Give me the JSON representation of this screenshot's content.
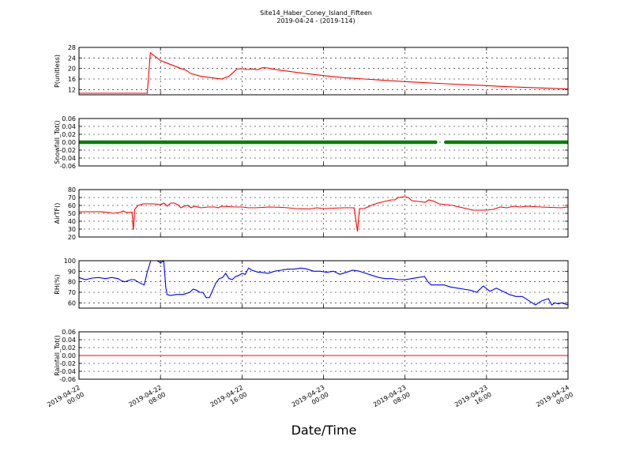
{
  "chart_data": {
    "type": "line",
    "title": "Site14_Haber_Coney_Island_Fifteen",
    "subtitle": "2019-04-24 - (2019-114)",
    "xlabel": "Date/Time",
    "x_ticks": [
      [
        "2019-04-22",
        "00:00"
      ],
      [
        "2019-04-22",
        "08:00"
      ],
      [
        "2019-04-22",
        "16:00"
      ],
      [
        "2019-04-23",
        "00:00"
      ],
      [
        "2019-04-23",
        "08:00"
      ],
      [
        "2019-04-23",
        "16:00"
      ],
      [
        "2019-04-24",
        "00:00"
      ]
    ],
    "x_range_hours": [
      0,
      48
    ],
    "panels": [
      {
        "ylabel": "P(unitless)",
        "ylim": [
          10,
          28
        ],
        "yticks": [
          "12",
          "16",
          "20",
          "24",
          "28"
        ],
        "ytick_values": [
          12,
          16,
          20,
          24,
          28
        ],
        "color": "#ff0000",
        "style": "line",
        "points": [
          [
            0,
            10.6
          ],
          [
            6.7,
            10.6
          ],
          [
            7.0,
            26.0
          ],
          [
            7.5,
            24.5
          ],
          [
            8.0,
            23.0
          ],
          [
            9.0,
            21.5
          ],
          [
            10.0,
            20.0
          ],
          [
            10.5,
            19.4
          ],
          [
            11.0,
            18.0
          ],
          [
            12.0,
            17.0
          ],
          [
            13.0,
            16.5
          ],
          [
            14.0,
            16.0
          ],
          [
            14.7,
            17.0
          ],
          [
            15.0,
            18.0
          ],
          [
            15.5,
            19.8
          ],
          [
            16.0,
            19.9
          ],
          [
            16.5,
            19.6
          ],
          [
            17.0,
            19.8
          ],
          [
            17.5,
            19.5
          ],
          [
            18.0,
            20.3
          ],
          [
            18.5,
            20.2
          ],
          [
            19.0,
            19.8
          ],
          [
            20.0,
            19.2
          ],
          [
            22.0,
            18.2
          ],
          [
            24.0,
            17.3
          ],
          [
            26.0,
            16.5
          ],
          [
            28.0,
            16.0
          ],
          [
            30.0,
            15.5
          ],
          [
            32.0,
            15.0
          ],
          [
            34.0,
            14.6
          ],
          [
            36.0,
            14.2
          ],
          [
            38.0,
            13.8
          ],
          [
            40.0,
            13.5
          ],
          [
            42.0,
            13.1
          ],
          [
            44.0,
            12.8
          ],
          [
            46.0,
            12.5
          ],
          [
            48.0,
            12.2
          ]
        ]
      },
      {
        "ylabel": "Snowfall_Tot()",
        "ylim": [
          -0.06,
          0.06
        ],
        "yticks": [
          "-0.06",
          "-0.04",
          "-0.02",
          "0.00",
          "0.02",
          "0.04",
          "0.06"
        ],
        "ytick_values": [
          -0.06,
          -0.04,
          -0.02,
          0.0,
          0.02,
          0.04,
          0.06
        ],
        "color": "#008000",
        "style": "thick",
        "segments": [
          [
            [
              0,
              0.0
            ],
            [
              35.0,
              0.0
            ]
          ],
          [
            [
              36.0,
              0.0
            ],
            [
              48.0,
              0.0
            ]
          ]
        ]
      },
      {
        "ylabel": "AirTF()",
        "ylim": [
          20,
          80
        ],
        "yticks": [
          "20",
          "30",
          "40",
          "50",
          "60",
          "70",
          "80"
        ],
        "ytick_values": [
          20,
          30,
          40,
          50,
          60,
          70,
          80
        ],
        "color": "#ff0000",
        "style": "line",
        "points": [
          [
            0,
            52
          ],
          [
            3,
            52
          ],
          [
            4.5,
            51
          ],
          [
            5,
            50
          ],
          [
            6,
            51
          ],
          [
            6.5,
            53
          ],
          [
            7,
            51
          ],
          [
            7.8,
            51.5
          ],
          [
            8.0,
            29
          ],
          [
            8.2,
            55
          ],
          [
            8.7,
            60
          ],
          [
            9.5,
            62
          ],
          [
            11,
            62
          ],
          [
            12,
            61
          ],
          [
            12.5,
            63
          ],
          [
            13,
            59
          ],
          [
            13.5,
            63
          ],
          [
            14,
            63
          ],
          [
            14.5,
            61
          ],
          [
            15,
            57
          ],
          [
            15.5,
            59
          ],
          [
            16,
            60
          ],
          [
            16.5,
            57
          ],
          [
            17,
            59
          ],
          [
            18,
            57
          ],
          [
            19,
            58
          ],
          [
            20,
            58
          ],
          [
            20.5,
            57
          ],
          [
            21,
            59
          ],
          [
            23,
            58
          ],
          [
            24,
            58
          ],
          [
            25,
            57
          ],
          [
            26,
            57
          ],
          [
            28,
            58
          ],
          [
            30,
            57.5
          ],
          [
            32,
            56
          ],
          [
            34,
            55.5
          ],
          [
            35,
            57
          ],
          [
            36,
            56
          ],
          [
            39,
            57
          ],
          [
            40.5,
            57
          ],
          [
            41,
            27
          ],
          [
            41.3,
            56
          ],
          [
            42,
            56
          ],
          [
            43,
            60
          ],
          [
            44,
            63
          ],
          [
            45,
            65
          ],
          [
            46,
            67
          ],
          [
            46.5,
            67
          ],
          [
            47,
            70
          ],
          [
            48,
            71
          ],
          [
            48.5,
            70
          ],
          [
            49,
            66
          ],
          [
            50,
            65
          ],
          [
            51,
            64
          ],
          [
            51.5,
            67
          ],
          [
            52,
            66
          ],
          [
            53,
            62
          ],
          [
            54,
            61
          ],
          [
            55,
            60
          ],
          [
            56,
            58
          ],
          [
            57,
            56
          ],
          [
            58,
            54
          ],
          [
            60,
            54
          ],
          [
            61,
            55
          ],
          [
            62,
            58
          ],
          [
            63,
            57
          ],
          [
            64,
            59
          ],
          [
            65,
            58
          ],
          [
            66,
            59
          ],
          [
            68,
            58
          ],
          [
            71,
            57
          ],
          [
            72,
            58
          ]
        ]
      },
      {
        "ylabel": "RH(%)",
        "ylim": [
          55,
          100
        ],
        "yticks": [
          "60",
          "70",
          "80",
          "90",
          "100"
        ],
        "ytick_values": [
          60,
          70,
          80,
          90,
          100
        ],
        "color": "#0000ff",
        "style": "line",
        "points": [
          [
            0,
            84
          ],
          [
            0.5,
            83
          ],
          [
            1,
            82
          ],
          [
            2,
            83.5
          ],
          [
            3,
            84
          ],
          [
            4,
            83
          ],
          [
            5,
            84
          ],
          [
            6,
            83
          ],
          [
            6.5,
            81
          ],
          [
            7,
            80
          ],
          [
            8,
            82
          ],
          [
            8.5,
            82
          ],
          [
            9,
            80
          ],
          [
            10,
            77
          ],
          [
            10.5,
            90
          ],
          [
            11,
            100
          ],
          [
            12,
            100
          ],
          [
            12.5,
            98
          ],
          [
            13,
            100
          ],
          [
            13.3,
            75
          ],
          [
            13.5,
            68
          ],
          [
            14,
            67
          ],
          [
            15,
            68
          ],
          [
            16,
            68
          ],
          [
            17,
            70
          ],
          [
            17.5,
            73
          ],
          [
            18,
            72
          ],
          [
            18.5,
            70
          ],
          [
            19,
            70
          ],
          [
            19.5,
            65
          ],
          [
            20,
            65
          ],
          [
            20.5,
            72
          ],
          [
            21,
            79
          ],
          [
            21.5,
            83
          ],
          [
            22,
            84
          ],
          [
            22.5,
            88
          ],
          [
            23,
            83
          ],
          [
            23.5,
            82
          ],
          [
            24,
            85
          ],
          [
            24.5,
            86
          ],
          [
            25,
            88
          ],
          [
            25.5,
            87
          ],
          [
            26,
            93
          ],
          [
            26.5,
            91
          ],
          [
            27,
            90
          ],
          [
            27.5,
            89
          ],
          [
            28,
            89
          ],
          [
            29,
            88
          ],
          [
            30,
            90
          ],
          [
            31,
            91
          ],
          [
            32,
            92
          ],
          [
            33,
            92
          ],
          [
            34,
            93
          ],
          [
            35,
            92
          ],
          [
            36,
            90
          ],
          [
            37,
            90
          ],
          [
            38,
            89
          ],
          [
            39,
            90
          ],
          [
            40,
            87
          ],
          [
            41,
            89
          ],
          [
            42,
            91
          ],
          [
            43,
            90
          ],
          [
            44,
            88
          ],
          [
            45,
            86
          ],
          [
            46,
            84
          ],
          [
            47,
            83
          ],
          [
            48,
            83
          ],
          [
            49,
            82
          ],
          [
            50,
            82
          ],
          [
            51,
            83
          ],
          [
            52,
            84
          ],
          [
            53,
            85
          ],
          [
            53.5,
            80
          ],
          [
            54,
            77
          ],
          [
            55,
            77
          ],
          [
            56,
            77
          ],
          [
            57,
            75
          ],
          [
            58,
            74
          ],
          [
            59,
            73
          ],
          [
            60,
            72
          ],
          [
            61,
            70
          ],
          [
            62,
            76
          ],
          [
            63,
            71
          ],
          [
            64,
            74
          ],
          [
            65,
            71
          ],
          [
            66,
            68
          ],
          [
            67,
            66
          ],
          [
            68,
            66
          ],
          [
            69,
            62
          ],
          [
            70,
            58
          ],
          [
            71,
            62
          ],
          [
            72,
            64
          ],
          [
            72.5,
            58
          ],
          [
            73,
            60
          ],
          [
            73.5,
            59
          ],
          [
            74,
            60
          ],
          [
            75,
            58
          ]
        ]
      },
      {
        "ylabel": "Rainfall_Tot()",
        "ylim": [
          -0.06,
          0.06
        ],
        "yticks": [
          "-0.06",
          "-0.04",
          "-0.02",
          "0.00",
          "0.02",
          "0.04",
          "0.06"
        ],
        "ytick_values": [
          -0.06,
          -0.04,
          -0.02,
          0.0,
          0.02,
          0.04,
          0.06
        ],
        "color": "#ff0000",
        "style": "line",
        "points": [
          [
            0,
            0.0
          ],
          [
            48,
            0.0
          ]
        ]
      }
    ]
  }
}
